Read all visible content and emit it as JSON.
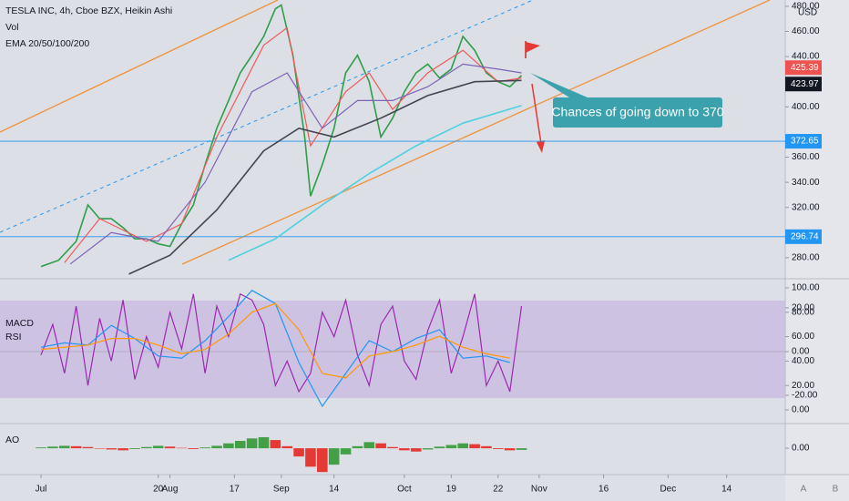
{
  "chart_data": [
    {
      "type": "line",
      "title": "TESLA INC, 4h, Cboe BZX, Heikin Ashi",
      "indicators": [
        "Vol",
        "EMA 20/50/100/200"
      ],
      "currency": "USD",
      "annotation": "Chances of going down to 370",
      "xlim": [
        -7,
        127
      ],
      "xticks": [
        {
          "value": 0,
          "label": "Jul"
        },
        20,
        {
          "value": 22,
          "label": "Aug"
        },
        {
          "value": 33,
          "label": "17"
        },
        {
          "value": 41,
          "label": "Sep"
        },
        {
          "value": 50,
          "label": "14"
        },
        {
          "value": 62,
          "label": "Oct"
        },
        {
          "value": 70,
          "label": "19"
        },
        {
          "value": 78,
          "label": "22"
        },
        {
          "value": 85,
          "label": "Nov"
        },
        {
          "value": 96,
          "label": "16"
        },
        {
          "value": 107,
          "label": "Dec"
        },
        {
          "value": 117,
          "label": "14"
        }
      ],
      "ylim": [
        264,
        485
      ],
      "yticks": [
        {
          "value": 280,
          "label": "280.00"
        },
        {
          "value": 320,
          "label": "320.00"
        },
        {
          "value": 340,
          "label": "340.00"
        },
        {
          "value": 360,
          "label": "360.00"
        },
        {
          "value": 400,
          "label": "400.00"
        },
        {
          "value": 440,
          "label": "440.00"
        },
        {
          "value": 460,
          "label": "460.00"
        },
        {
          "value": 480,
          "label": "480.00"
        }
      ],
      "last_prices": [
        425.39,
        423.97
      ],
      "last_price_colors": [
        "#ef5350",
        "#131722"
      ],
      "levels": [
        372.65,
        296.74
      ],
      "level_color": "#2196f3",
      "series": [
        {
          "color": "#2e9e49",
          "width": 1.6,
          "x": [
            0,
            3,
            6,
            8,
            10,
            12,
            14,
            16,
            18,
            20,
            22,
            24,
            26,
            28,
            30,
            32,
            34,
            36,
            38,
            40,
            41,
            43,
            45,
            46,
            48,
            50,
            52,
            54,
            56,
            58,
            60,
            62,
            64,
            66,
            68,
            70,
            72,
            74,
            76,
            78,
            80,
            82
          ],
          "values": [
            273,
            278,
            293,
            322,
            311,
            311,
            304,
            295,
            295,
            291,
            289,
            307,
            322,
            354,
            383,
            405,
            427,
            441,
            456,
            478,
            481,
            441,
            376,
            329,
            354,
            383,
            427,
            441,
            420,
            376,
            391,
            412,
            427,
            434,
            423,
            430,
            456,
            445,
            427,
            420,
            416,
            425
          ]
        },
        {
          "color": "#f05a5a",
          "width": 1.2,
          "x": [
            4,
            10,
            18,
            24,
            30,
            38,
            42,
            46,
            52,
            56,
            60,
            66,
            72,
            78,
            82
          ],
          "values": [
            276,
            311,
            293,
            307,
            376,
            449,
            463,
            369,
            412,
            427,
            398,
            427,
            445,
            420,
            423
          ]
        },
        {
          "color": "#7e62b8",
          "width": 1.2,
          "x": [
            5,
            12,
            20,
            28,
            36,
            42,
            48,
            54,
            60,
            66,
            72,
            78,
            82
          ],
          "values": [
            275,
            300,
            293,
            340,
            412,
            427,
            383,
            405,
            405,
            416,
            434,
            430,
            427
          ]
        },
        {
          "color": "#434651",
          "width": 1.6,
          "x": [
            15,
            22,
            30,
            38,
            44,
            50,
            58,
            66,
            74,
            82
          ],
          "values": [
            267,
            282,
            318,
            365,
            383,
            376,
            391,
            409,
            420,
            421
          ]
        },
        {
          "color": "#4dd0e1",
          "width": 1.6,
          "x": [
            32,
            40,
            48,
            56,
            64,
            72,
            82
          ],
          "values": [
            278,
            295,
            322,
            347,
            369,
            387,
            401
          ]
        }
      ]
    },
    {
      "type": "line",
      "indicators": [
        "MACD",
        "RSI"
      ],
      "ylim": [
        -32.9,
        32.9
      ],
      "yticks": [
        {
          "value": 20,
          "label": "20.00"
        },
        {
          "value": 0,
          "label": "0.00"
        },
        {
          "value": -20,
          "label": "-20.00"
        }
      ],
      "y2lim": [
        -11.2,
        106.7
      ],
      "y2ticks": [
        {
          "value": 100,
          "label": "100.00"
        },
        {
          "value": 80,
          "label": "80.00"
        },
        {
          "value": 60,
          "label": "60.00"
        },
        {
          "value": 40,
          "label": "40.00"
        },
        {
          "value": 20,
          "label": "20.00"
        },
        {
          "value": 0,
          "label": "0.00"
        }
      ],
      "series": [
        {
          "color": "#9c27b0",
          "axis": "y2",
          "x": [
            0,
            2,
            4,
            6,
            8,
            10,
            12,
            14,
            16,
            18,
            20,
            22,
            24,
            26,
            28,
            30,
            32,
            34,
            36,
            38,
            40,
            42,
            44,
            46,
            48,
            50,
            52,
            54,
            56,
            58,
            60,
            62,
            64,
            66,
            68,
            70,
            72,
            74,
            76,
            78,
            80,
            82
          ],
          "values": [
            45,
            70,
            30,
            85,
            20,
            75,
            40,
            90,
            25,
            60,
            35,
            80,
            50,
            95,
            30,
            85,
            60,
            95,
            90,
            70,
            20,
            40,
            15,
            30,
            80,
            60,
            90,
            45,
            20,
            70,
            85,
            40,
            25,
            65,
            90,
            30,
            60,
            95,
            20,
            40,
            15,
            85
          ]
        },
        {
          "color": "#2196f3",
          "x": [
            0,
            4,
            8,
            12,
            16,
            20,
            24,
            28,
            32,
            36,
            40,
            44,
            48,
            52,
            56,
            60,
            64,
            68,
            72,
            76,
            80
          ],
          "values": [
            2,
            4,
            3,
            12,
            6,
            -2,
            -3,
            5,
            16,
            28,
            22,
            -5,
            -25,
            -10,
            5,
            0,
            6,
            10,
            -3,
            -2,
            -5
          ]
        },
        {
          "color": "#ff9800",
          "x": [
            0,
            4,
            8,
            12,
            16,
            20,
            24,
            28,
            32,
            36,
            40,
            44,
            48,
            52,
            56,
            60,
            64,
            68,
            72,
            76,
            80
          ],
          "values": [
            1,
            2,
            3,
            6,
            6,
            3,
            -1,
            1,
            8,
            18,
            22,
            10,
            -10,
            -12,
            -2,
            0,
            3,
            7,
            2,
            -1,
            -3
          ]
        }
      ]
    },
    {
      "type": "bar",
      "indicators": [
        "AO"
      ],
      "ylim": [
        -62,
        58
      ],
      "yticks": [
        {
          "value": 0,
          "label": "0.00"
        }
      ],
      "up_color": "#43a047",
      "down_color": "#e53935",
      "x": [
        0,
        2,
        4,
        6,
        8,
        10,
        12,
        14,
        16,
        18,
        20,
        22,
        24,
        26,
        28,
        30,
        32,
        34,
        36,
        38,
        40,
        42,
        44,
        46,
        48,
        50,
        52,
        54,
        56,
        58,
        60,
        62,
        64,
        66,
        68,
        70,
        72,
        74,
        76,
        78,
        80,
        82
      ],
      "values": [
        2,
        4,
        6,
        5,
        3,
        0,
        -3,
        -5,
        -2,
        3,
        6,
        4,
        1,
        -2,
        2,
        6,
        12,
        18,
        24,
        27,
        20,
        5,
        -20,
        -45,
        -58,
        -40,
        -15,
        5,
        15,
        12,
        3,
        -5,
        -8,
        -3,
        4,
        8,
        12,
        10,
        5,
        -2,
        -5,
        -4
      ]
    },
    {
      "type": "axis-buttons",
      "labels": [
        "A",
        "B"
      ]
    }
  ]
}
